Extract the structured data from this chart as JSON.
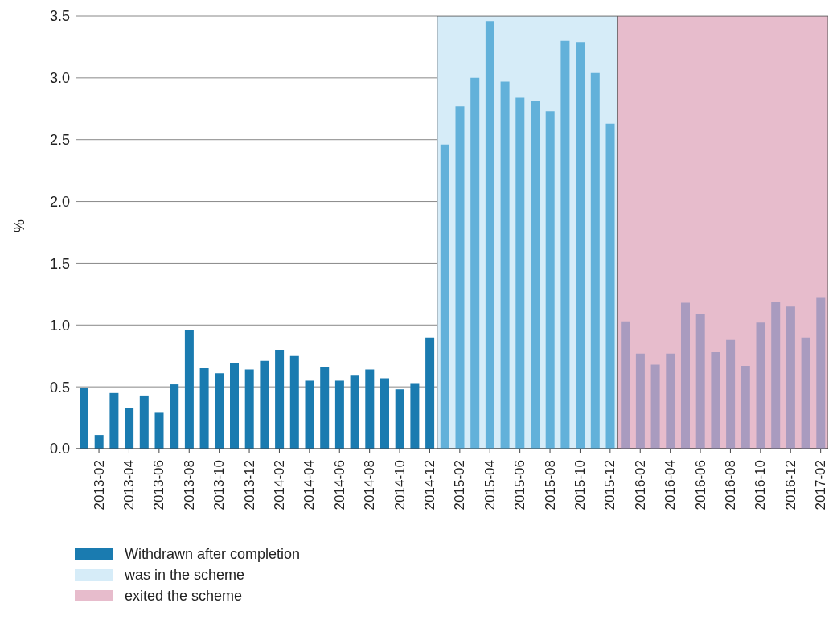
{
  "chart_data": {
    "type": "bar",
    "ylabel": "%",
    "categories": [
      null,
      "2013-02",
      null,
      "2013-04",
      null,
      "2013-06",
      null,
      "2013-08",
      null,
      "2013-10",
      null,
      "2013-12",
      null,
      "2014-02",
      null,
      "2014-04",
      null,
      "2014-06",
      null,
      "2014-08",
      null,
      "2014-10",
      null,
      "2014-12",
      null,
      "2015-02",
      null,
      "2015-04",
      null,
      "2015-06",
      null,
      "2015-08",
      null,
      "2015-10",
      null,
      "2015-12",
      null,
      "2016-02",
      null,
      "2016-04",
      null,
      "2016-06",
      null,
      "2016-08",
      null,
      "2016-10",
      null,
      "2016-12",
      null,
      "2017-02"
    ],
    "series": [
      {
        "name": "Withdrawn after completion",
        "color": "#1a7bb0",
        "values": [
          0.49,
          0.11,
          0.45,
          0.33,
          0.43,
          0.29,
          0.52,
          0.96,
          0.65,
          0.61,
          0.69,
          0.64,
          0.71,
          0.8,
          0.75,
          0.55,
          0.66,
          0.55,
          0.59,
          0.64,
          0.57,
          0.48,
          0.53,
          0.9,
          2.46,
          2.77,
          3.0,
          3.46,
          2.97,
          2.84,
          2.81,
          2.73,
          3.3,
          3.29,
          3.04,
          2.63,
          1.03,
          0.77,
          0.68,
          0.77,
          1.18,
          1.09,
          0.78,
          0.88,
          0.67,
          1.02,
          1.19,
          1.15,
          0.9,
          1.22
        ],
        "colors": [
          "#1a7bb0",
          "#1a7bb0",
          "#1a7bb0",
          "#1a7bb0",
          "#1a7bb0",
          "#1a7bb0",
          "#1a7bb0",
          "#1a7bb0",
          "#1a7bb0",
          "#1a7bb0",
          "#1a7bb0",
          "#1a7bb0",
          "#1a7bb0",
          "#1a7bb0",
          "#1a7bb0",
          "#1a7bb0",
          "#1a7bb0",
          "#1a7bb0",
          "#1a7bb0",
          "#1a7bb0",
          "#1a7bb0",
          "#1a7bb0",
          "#1a7bb0",
          "#1a7bb0",
          "#62b1da",
          "#62b1da",
          "#62b1da",
          "#62b1da",
          "#62b1da",
          "#62b1da",
          "#62b1da",
          "#62b1da",
          "#62b1da",
          "#62b1da",
          "#62b1da",
          "#62b1da",
          "#a99bbf",
          "#a99bbf",
          "#a99bbf",
          "#a99bbf",
          "#a99bbf",
          "#a99bbf",
          "#a99bbf",
          "#a99bbf",
          "#a99bbf",
          "#a99bbf",
          "#a99bbf",
          "#a99bbf",
          "#a99bbf",
          "#a99bbf"
        ]
      }
    ],
    "bands": [
      {
        "axis": "x",
        "from": "2014-12",
        "to": "2015-12",
        "label": "was in the scheme",
        "color": "#d6ecf8"
      },
      {
        "axis": "x",
        "from": "2015-12",
        "to": "2017-02",
        "label": "exited the scheme",
        "color": "#e7bccc"
      }
    ],
    "ylim": [
      0,
      3.5
    ],
    "yticks": [
      {
        "value": 0,
        "label": "0.0"
      },
      {
        "value": 0.5,
        "label": "0.5"
      },
      {
        "value": 1,
        "label": "1.0"
      },
      {
        "value": 1.5,
        "label": "1.5"
      },
      {
        "value": 2,
        "label": "2.0"
      },
      {
        "value": 2.5,
        "label": "2.5"
      },
      {
        "value": 3,
        "label": "3.0"
      },
      {
        "value": 3.5,
        "label": "3.5"
      }
    ],
    "grid": "y",
    "legend": "bottom left"
  }
}
